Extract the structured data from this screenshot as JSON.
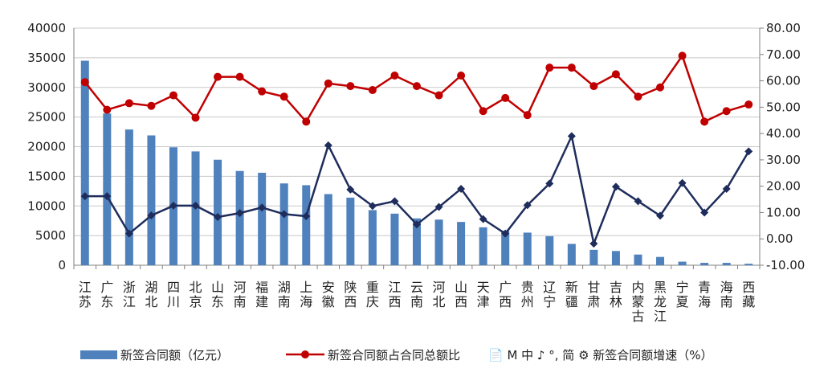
{
  "chart_data": {
    "type": "bar",
    "categories": [
      "江苏",
      "广东",
      "浙江",
      "湖北",
      "四川",
      "北京",
      "山东",
      "河南",
      "福建",
      "湖南",
      "上海",
      "安徽",
      "陕西",
      "重庆",
      "江西",
      "云南",
      "河北",
      "山西",
      "天津",
      "广西",
      "贵州",
      "辽宁",
      "新疆",
      "甘肃",
      "吉林",
      "内蒙古",
      "黑龙江",
      "宁夏",
      "青海",
      "海南",
      "西藏"
    ],
    "series": [
      {
        "name": "新签合同额（亿元）",
        "type": "bar",
        "axis": "left",
        "values": [
          34500,
          25600,
          22900,
          21900,
          19900,
          19200,
          17800,
          15900,
          15600,
          13800,
          13500,
          12000,
          11400,
          9300,
          8700,
          7900,
          7700,
          7300,
          6400,
          5800,
          5500,
          4900,
          3600,
          2600,
          2400,
          1800,
          1400,
          600,
          400,
          400,
          250
        ]
      },
      {
        "name": "新签合同额占合同总额比",
        "type": "line",
        "axis": "right",
        "color": "#c00000",
        "values": [
          59.5,
          49.0,
          51.5,
          50.5,
          54.5,
          46.0,
          61.5,
          61.5,
          56.0,
          54.0,
          44.5,
          59.0,
          58.0,
          56.5,
          62.0,
          58.0,
          54.5,
          62.0,
          48.5,
          53.5,
          47.0,
          65.0,
          65.0,
          58.0,
          62.5,
          54.0,
          57.5,
          69.5,
          44.5,
          48.5,
          51.0
        ]
      },
      {
        "name": "新签合同额增速（%）",
        "type": "line",
        "axis": "right",
        "color": "#1f2d5c",
        "values": [
          16.2,
          16.2,
          2.0,
          8.9,
          12.6,
          12.6,
          8.3,
          9.8,
          11.9,
          9.4,
          8.6,
          35.5,
          18.7,
          12.5,
          14.3,
          5.5,
          12.1,
          19.0,
          7.5,
          2.0,
          12.8,
          21.0,
          39.0,
          -1.8,
          19.8,
          14.3,
          8.8,
          21.2,
          10.0,
          19.0,
          33.2
        ]
      }
    ],
    "y_left": {
      "min": 0,
      "max": 40000,
      "ticks": [
        "0",
        "5000",
        "10000",
        "15000",
        "20000",
        "25000",
        "30000",
        "35000",
        "40000"
      ]
    },
    "y_right": {
      "min": -10,
      "max": 80,
      "ticks": [
        "-10.00",
        "0.00",
        "10.00",
        "20.00",
        "30.00",
        "40.00",
        "50.00",
        "60.00",
        "70.00",
        "80.00"
      ]
    },
    "grid": true,
    "legend_position": "bottom",
    "legend_overlay_text": "📄 M 中 ♪ °, 简 ⚙ 新签合同额增速（%）",
    "colors": {
      "bar": "#4f81bd",
      "line_share": "#c00000",
      "line_growth": "#1f2d5c",
      "grid": "#c8c8c8",
      "axis": "#808080"
    }
  }
}
